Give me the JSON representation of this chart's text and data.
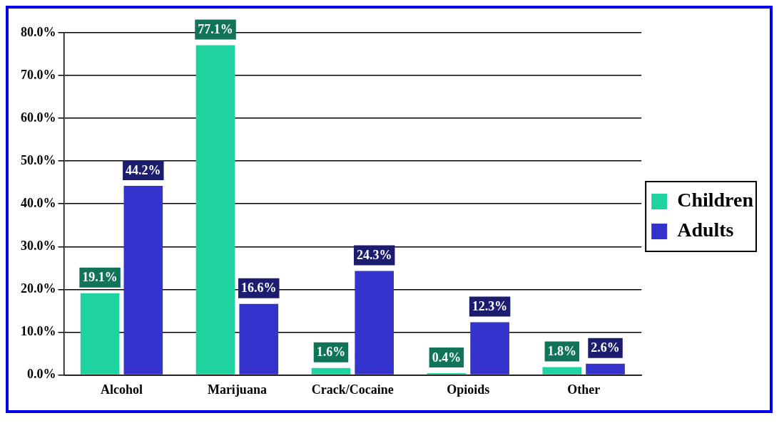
{
  "chart_data": {
    "type": "bar",
    "categories": [
      "Alcohol",
      "Marijuana",
      "Crack/Cocaine",
      "Opioids",
      "Other"
    ],
    "series": [
      {
        "name": "Children",
        "color": "#1fd3a0",
        "values": [
          19.1,
          77.1,
          1.6,
          0.4,
          1.8
        ],
        "value_labels": [
          "19.1%",
          "77.1%",
          "1.6%",
          "0.4%",
          "1.8%"
        ]
      },
      {
        "name": "Adults",
        "color": "#3434cc",
        "values": [
          44.2,
          16.6,
          24.3,
          12.3,
          2.6
        ],
        "value_labels": [
          "44.2%",
          "16.6%",
          "24.3%",
          "12.3%",
          "2.6%"
        ]
      }
    ],
    "ylim": [
      0,
      80
    ],
    "yticks": [
      {
        "value": 0,
        "label": "0.0%"
      },
      {
        "value": 10,
        "label": "10.0%"
      },
      {
        "value": 20,
        "label": "20.0%"
      },
      {
        "value": 30,
        "label": "30.0%"
      },
      {
        "value": 40,
        "label": "40.0%"
      },
      {
        "value": 50,
        "label": "50.0%"
      },
      {
        "value": 60,
        "label": "60.0%"
      },
      {
        "value": 70,
        "label": "70.0%"
      },
      {
        "value": 80,
        "label": "80.0%"
      }
    ],
    "grid": "y",
    "legend": "right"
  }
}
